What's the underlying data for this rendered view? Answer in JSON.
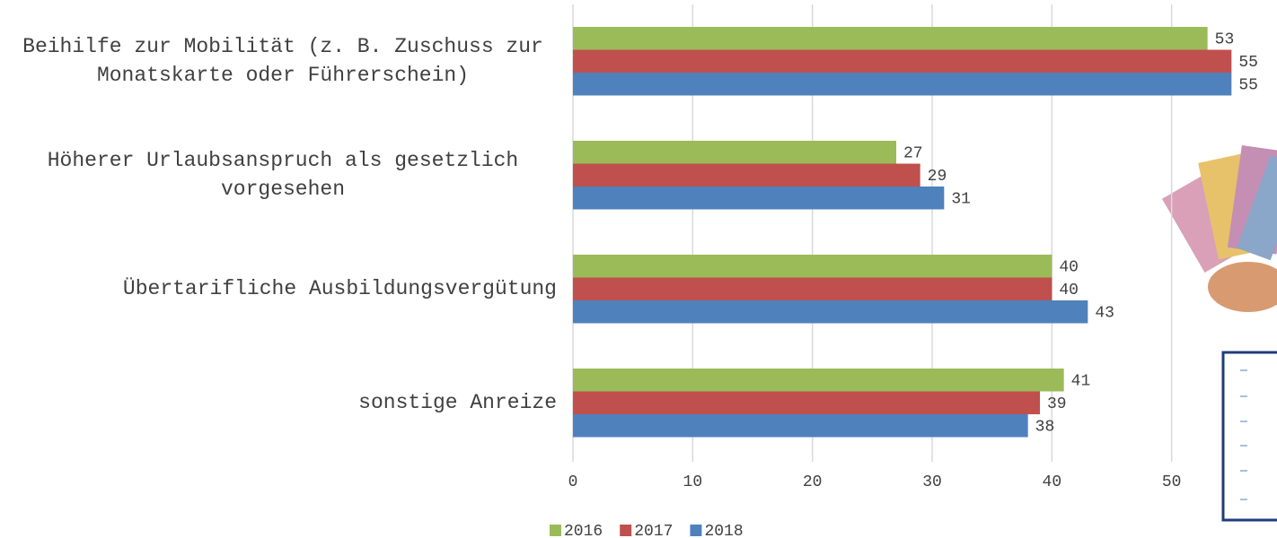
{
  "chart_data": {
    "type": "bar",
    "orientation": "horizontal",
    "categories": [
      "Beihilfe zur Mobilität (z. B. Zuschuss zur Monatskarte oder Führerschein)",
      "Höherer Urlaubsanspruch als gesetzlich vorgesehen",
      "Übertarifliche Ausbildungsvergütung",
      "sonstige Anreize"
    ],
    "series": [
      {
        "name": "2016",
        "color": "#9bbb59",
        "values": [
          53,
          27,
          40,
          41
        ]
      },
      {
        "name": "2017",
        "color": "#c0504d",
        "values": [
          55,
          29,
          40,
          39
        ]
      },
      {
        "name": "2018",
        "color": "#4f81bd",
        "values": [
          55,
          31,
          43,
          38
        ]
      }
    ],
    "xlim": [
      0,
      60
    ],
    "xticks": [
      0,
      10,
      20,
      30,
      40,
      50
    ],
    "grid": true,
    "legend": "bottom"
  }
}
